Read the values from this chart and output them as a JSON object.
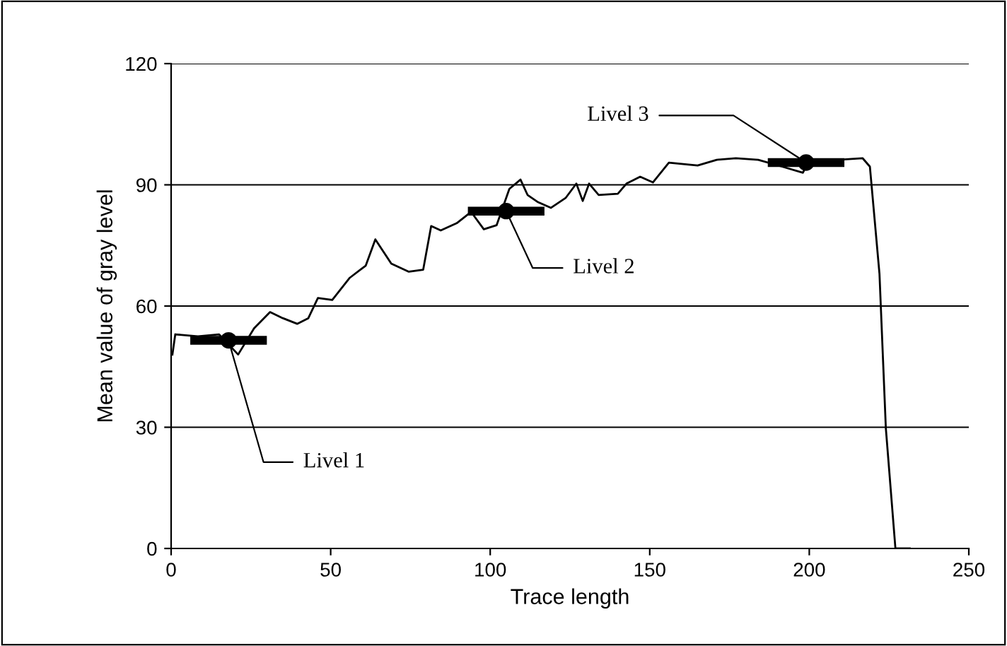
{
  "chart_data": {
    "type": "line",
    "xlabel": "Trace length",
    "ylabel": "Mean value of gray level",
    "xlim": [
      0,
      250
    ],
    "ylim": [
      0,
      120
    ],
    "xticks": [
      0,
      50,
      100,
      150,
      200,
      250
    ],
    "yticks": [
      0,
      30,
      60,
      90,
      120
    ],
    "grid": "y",
    "legend": false,
    "series": [
      {
        "color": "#000000",
        "marker": "none",
        "x": [
          0.4,
          1.3,
          8.4,
          15,
          18,
          21,
          26,
          31,
          35,
          39.5,
          43,
          46,
          50.5,
          56,
          61,
          64,
          69,
          74.5,
          79,
          81.5,
          84.5,
          89.5,
          94,
          98,
          102,
          106,
          109.5,
          111.7,
          115,
          119,
          123.7,
          127,
          129,
          131,
          134,
          140,
          142.7,
          147,
          151,
          156,
          165,
          171,
          177,
          184,
          191.5,
          198,
          200,
          209,
          216.7,
          219,
          222,
          224,
          227,
          231.5
        ],
        "values": [
          48,
          53,
          52.5,
          53,
          50.5,
          48,
          54.5,
          58.5,
          57,
          55.6,
          57,
          62,
          61.5,
          67,
          70,
          76.5,
          70.5,
          68.5,
          69,
          79.8,
          78.7,
          80.5,
          83.3,
          79,
          80,
          89,
          91.3,
          87.5,
          85.7,
          84.3,
          86.8,
          90.3,
          86,
          90.3,
          87.5,
          87.8,
          90.3,
          92,
          90.6,
          95.5,
          94.8,
          96.2,
          96.6,
          96.2,
          94.5,
          93,
          96.2,
          96.2,
          96.6,
          94.5,
          68,
          29.7,
          0,
          0
        ]
      },
      {
        "type": "scatter",
        "color": "#000000",
        "marker": "circle",
        "x": [
          18,
          105,
          199
        ],
        "values": [
          51.5,
          83.5,
          95.5
        ],
        "xerrors": [
          12,
          12,
          12
        ]
      }
    ],
    "annotations": [
      {
        "text": "Livel 1",
        "x": 18,
        "y": 51.5
      },
      {
        "text": "Livel 2",
        "x": 105,
        "y": 83.5
      },
      {
        "text": "Livel 3",
        "x": 199,
        "y": 95.5
      }
    ]
  }
}
